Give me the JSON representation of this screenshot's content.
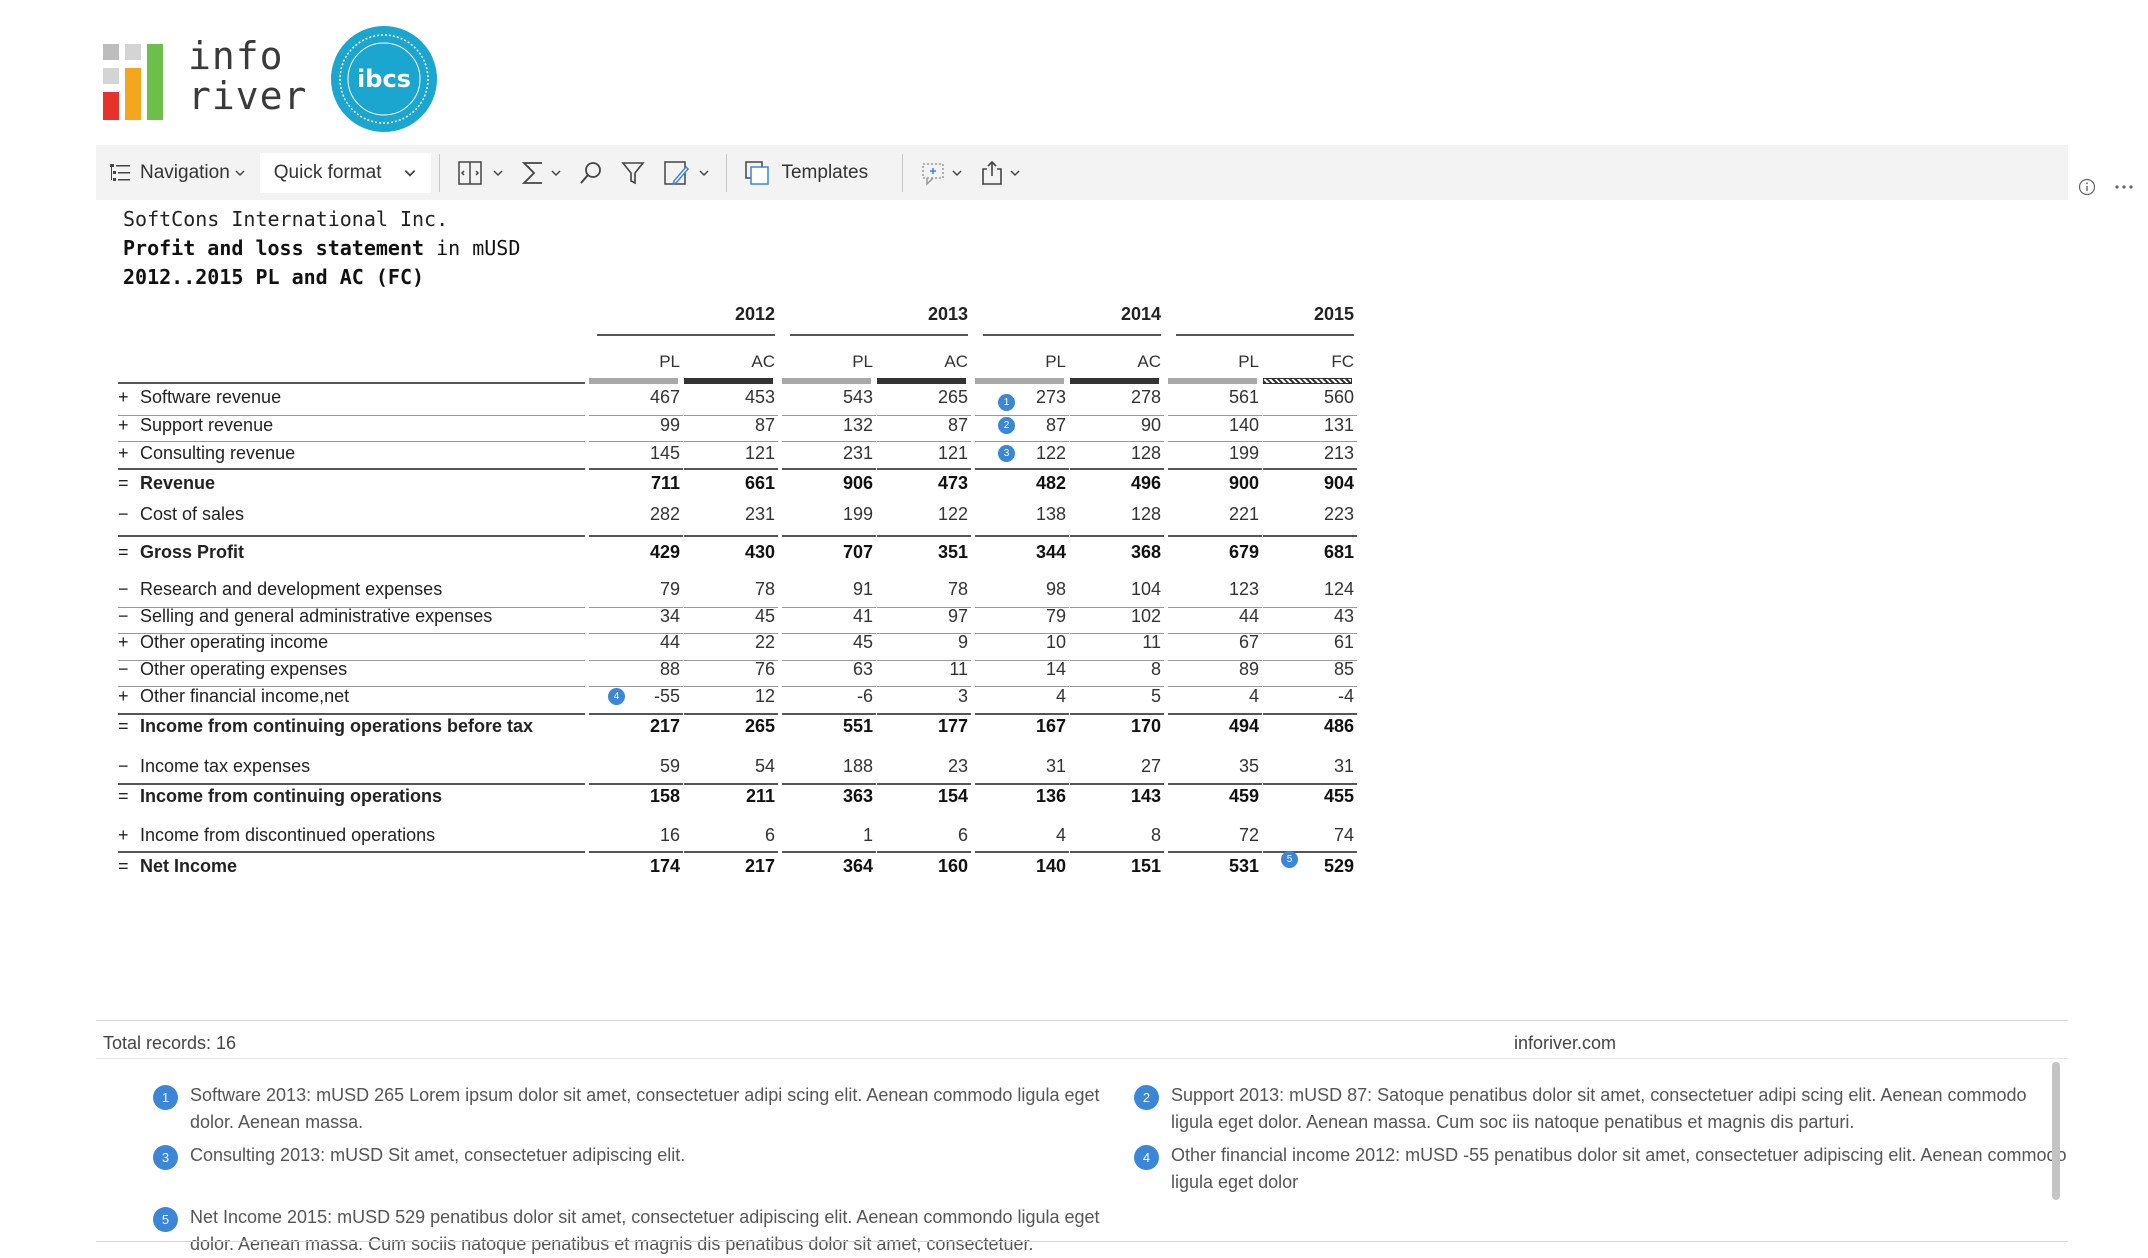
{
  "brand": {
    "logo_line1": "info",
    "logo_line2": "river",
    "badge_text": "ibcs"
  },
  "toolbar": {
    "navigation_label": "Navigation",
    "quick_format_label": "Quick format",
    "templates_label": "Templates"
  },
  "header": {
    "company": "SoftCons International Inc.",
    "title_bold": "Profit and loss statement",
    "title_rest": " in mUSD",
    "subtitle": "2012..2015 PL and AC (FC)"
  },
  "table": {
    "years": [
      "2012",
      "2013",
      "2014",
      "2015"
    ],
    "column_headers": [
      "PL",
      "AC",
      "PL",
      "AC",
      "PL",
      "AC",
      "PL",
      "FC"
    ],
    "rows": [
      {
        "sign": "+",
        "label": "Software revenue",
        "values": [
          "467",
          "453",
          "543",
          "265",
          "273",
          "278",
          "561",
          "560"
        ],
        "total": false
      },
      {
        "sign": "+",
        "label": "Support revenue",
        "values": [
          "99",
          "87",
          "132",
          "87",
          "87",
          "90",
          "140",
          "131"
        ],
        "total": false
      },
      {
        "sign": "+",
        "label": "Consulting revenue",
        "values": [
          "145",
          "121",
          "231",
          "121",
          "122",
          "128",
          "199",
          "213"
        ],
        "total": false
      },
      {
        "sign": "=",
        "label": "Revenue",
        "values": [
          "711",
          "661",
          "906",
          "473",
          "482",
          "496",
          "900",
          "904"
        ],
        "total": true
      },
      {
        "sign": "−",
        "label": "Cost of sales",
        "values": [
          "282",
          "231",
          "199",
          "122",
          "138",
          "128",
          "221",
          "223"
        ],
        "total": false
      },
      {
        "sign": "=",
        "label": "Gross Profit",
        "values": [
          "429",
          "430",
          "707",
          "351",
          "344",
          "368",
          "679",
          "681"
        ],
        "total": true
      },
      {
        "sign": "−",
        "label": "Research and development expenses",
        "values": [
          "79",
          "78",
          "91",
          "78",
          "98",
          "104",
          "123",
          "124"
        ],
        "total": false
      },
      {
        "sign": "−",
        "label": "Selling and general administrative expenses",
        "values": [
          "34",
          "45",
          "41",
          "97",
          "79",
          "102",
          "44",
          "43"
        ],
        "total": false
      },
      {
        "sign": "+",
        "label": "Other operating income",
        "values": [
          "44",
          "22",
          "45",
          "9",
          "10",
          "11",
          "67",
          "61"
        ],
        "total": false
      },
      {
        "sign": "−",
        "label": "Other operating expenses",
        "values": [
          "88",
          "76",
          "63",
          "11",
          "14",
          "8",
          "89",
          "85"
        ],
        "total": false
      },
      {
        "sign": "+",
        "label": "Other financial income,net",
        "values": [
          "-55",
          "12",
          "-6",
          "3",
          "4",
          "5",
          "4",
          "-4"
        ],
        "total": false
      },
      {
        "sign": "=",
        "label": "Income from continuing operations before tax",
        "values": [
          "217",
          "265",
          "551",
          "177",
          "167",
          "170",
          "494",
          "486"
        ],
        "total": true
      },
      {
        "sign": "−",
        "label": "Income tax expenses",
        "values": [
          "59",
          "54",
          "188",
          "23",
          "31",
          "27",
          "35",
          "31"
        ],
        "total": false
      },
      {
        "sign": "=",
        "label": "Income from continuing operations",
        "values": [
          "158",
          "211",
          "363",
          "154",
          "136",
          "143",
          "459",
          "455"
        ],
        "total": true
      },
      {
        "sign": "+",
        "label": "Income from discontinued operations",
        "values": [
          "16",
          "6",
          "1",
          "6",
          "4",
          "8",
          "72",
          "74"
        ],
        "total": false
      },
      {
        "sign": "=",
        "label": "Net Income",
        "values": [
          "174",
          "217",
          "364",
          "160",
          "140",
          "151",
          "531",
          "529"
        ],
        "total": true
      }
    ],
    "markers": [
      {
        "n": "1",
        "row": 0,
        "col": 4
      },
      {
        "n": "2",
        "row": 1,
        "col": 4
      },
      {
        "n": "3",
        "row": 2,
        "col": 4
      },
      {
        "n": "4",
        "row": 10,
        "col": 0
      },
      {
        "n": "5",
        "row": 15,
        "col": 7
      }
    ]
  },
  "footer": {
    "total_records": "Total records: 16",
    "site": "inforiver.com"
  },
  "notes": [
    {
      "n": "1",
      "text": "Software 2013: mUSD 265 Lorem ipsum dolor sit amet, consectetuer adipi scing elit. Aenean commodo ligula eget dolor. Aenean massa."
    },
    {
      "n": "2",
      "text": "Support 2013: mUSD 87: Satoque penatibus dolor sit amet, consectetuer adipi scing elit. Aenean commodo ligula eget dolor. Aenean massa. Cum soc iis natoque penatibus et magnis dis parturi."
    },
    {
      "n": "3",
      "text": "Consulting 2013: mUSD Sit amet, consectetuer adipiscing elit."
    },
    {
      "n": "4",
      "text": "Other financial income 2012: mUSD -55 penatibus dolor sit amet, consectetuer adipiscing elit. Aenean commodo ligula eget dolor"
    },
    {
      "n": "5",
      "text": "Net Income 2015: mUSD 529 penatibus dolor sit amet, consectetuer adipiscing elit. Aenean commondo ligula eget dolor. Aenean massa. Cum sociis natoque penatibus et magnis dis penatibus dolor sit amet, consectetuer."
    }
  ],
  "colors": {
    "accent": "#3b86d6",
    "plan_bar": "#a8a8a8",
    "actual_bar": "#333333",
    "badge": "#1aa6cf",
    "logo_red": "#e5322b",
    "logo_orange": "#f4a71d",
    "logo_green": "#6cc04a"
  }
}
